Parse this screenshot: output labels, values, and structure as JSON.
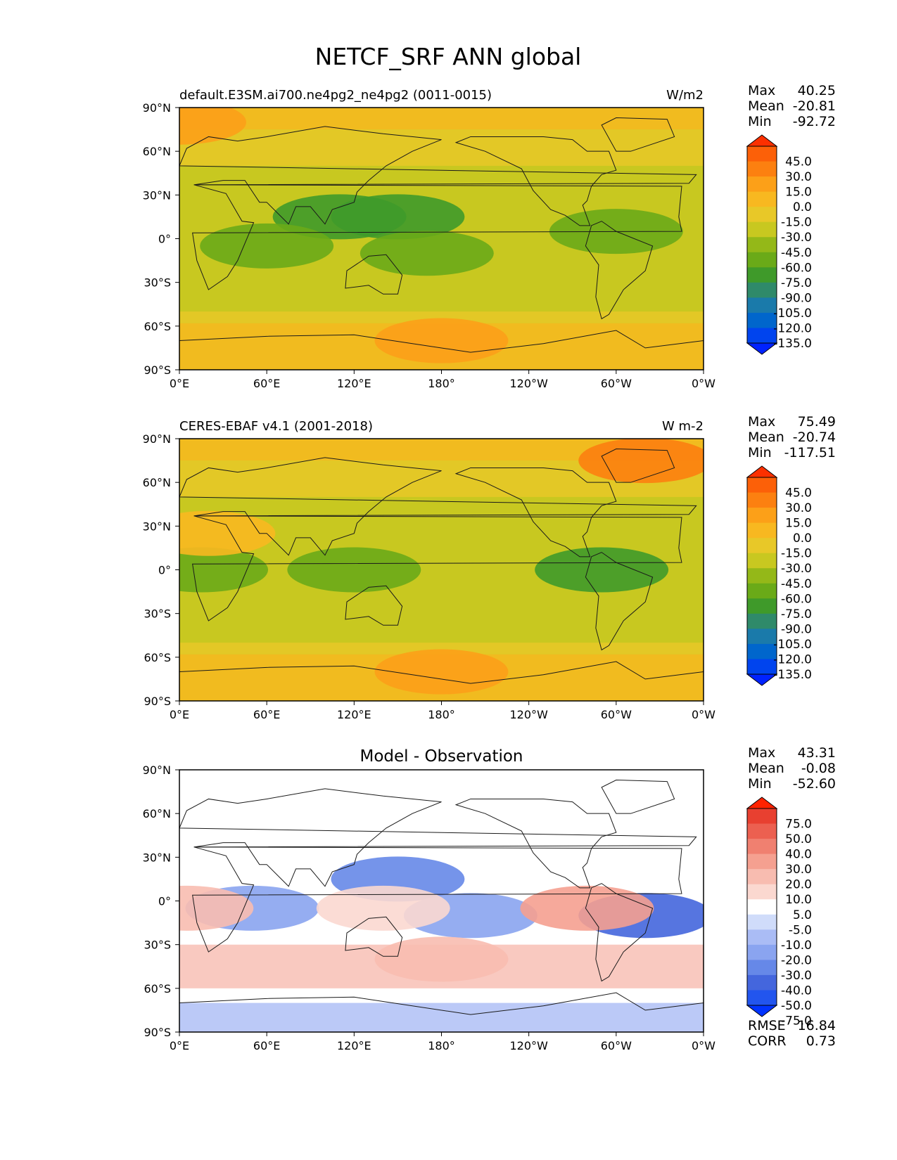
{
  "title": "NETCF_SRF ANN global",
  "lon_ticks": [
    "0°E",
    "60°E",
    "120°E",
    "180°",
    "120°W",
    "60°W",
    "0°W"
  ],
  "lat_ticks": [
    "90°N",
    "60°N",
    "30°N",
    "0°",
    "30°S",
    "60°S",
    "90°S"
  ],
  "stat_labels": {
    "max": "Max",
    "mean": "Mean",
    "min": "Min",
    "rmse": "RMSE",
    "corr": "CORR"
  },
  "colors": {
    "field_scale": [
      "#0022ff",
      "#0044ee",
      "#0066cc",
      "#1a7aaa",
      "#2f8a6a",
      "#3f9a2a",
      "#6aaa18",
      "#94b818",
      "#c8c820",
      "#e8c828",
      "#f8b820",
      "#fca018",
      "#fc8010",
      "#fc6008",
      "#fc3000"
    ],
    "diff_scale": [
      "#0033ff",
      "#2255ee",
      "#4466dd",
      "#6688e8",
      "#8aa4f0",
      "#aabcf5",
      "#d0dcfa",
      "#ffffff",
      "#fbd8d0",
      "#f8bcb0",
      "#f5a090",
      "#f08070",
      "#ec6050",
      "#e84030",
      "#ff2200"
    ]
  },
  "panels": [
    {
      "name": "model",
      "title_left": "default.E3SM.ai700.ne4pg2_ne4pg2 (0011-0015)",
      "title_center": "",
      "units": "W/m2",
      "stats": {
        "max": "40.25",
        "mean": "-20.81",
        "min": "-92.72"
      },
      "colorbar_labels": [
        "45.0",
        "30.0",
        "15.0",
        "0.0",
        "-15.0",
        "-30.0",
        "-45.0",
        "-60.0",
        "-75.0",
        "-90.0",
        "-105.0",
        "-120.0",
        "-135.0"
      ]
    },
    {
      "name": "observation",
      "title_left": "CERES-EBAF v4.1 (2001-2018)",
      "title_center": "",
      "units": "W m-2",
      "stats": {
        "max": "75.49",
        "mean": "-20.74",
        "min": "-117.51"
      },
      "colorbar_labels": [
        "45.0",
        "30.0",
        "15.0",
        "0.0",
        "-15.0",
        "-30.0",
        "-45.0",
        "-60.0",
        "-75.0",
        "-90.0",
        "-105.0",
        "-120.0",
        "-135.0"
      ]
    },
    {
      "name": "difference",
      "title_left": "",
      "title_center": "Model - Observation",
      "units": "",
      "stats": {
        "max": "43.31",
        "mean": "-0.08",
        "min": "-52.60"
      },
      "colorbar_labels": [
        "75.0",
        "50.0",
        "40.0",
        "30.0",
        "20.0",
        "10.0",
        "5.0",
        "-5.0",
        "-10.0",
        "-20.0",
        "-30.0",
        "-40.0",
        "-50.0",
        "-75.0"
      ],
      "rmse": "16.84",
      "corr": "0.73"
    }
  ],
  "chart_data": [
    {
      "type": "heatmap",
      "title": "default.E3SM.ai700.ne4pg2_ne4pg2 (0011-0015)",
      "units": "W/m2",
      "xlim": [
        0,
        360
      ],
      "ylim": [
        -90,
        90
      ],
      "levels": [
        -135,
        -120,
        -105,
        -90,
        -75,
        -60,
        -45,
        -30,
        -15,
        0,
        15,
        30,
        45
      ],
      "max": 40.25,
      "mean": -20.81,
      "min": -92.72,
      "features": [
        {
          "lon": 150,
          "lat": 15,
          "value": -65
        },
        {
          "lon": 110,
          "lat": 15,
          "value": -70
        },
        {
          "lon": 170,
          "lat": -10,
          "value": -50
        },
        {
          "lon": 60,
          "lat": -5,
          "value": -45
        },
        {
          "lon": 300,
          "lat": 5,
          "value": -50
        },
        {
          "lon": 0,
          "lat": 80,
          "value": 20
        },
        {
          "lon": 180,
          "lat": -70,
          "value": 25
        }
      ]
    },
    {
      "type": "heatmap",
      "title": "CERES-EBAF v4.1 (2001-2018)",
      "units": "W m-2",
      "xlim": [
        0,
        360
      ],
      "ylim": [
        -90,
        90
      ],
      "levels": [
        -135,
        -120,
        -105,
        -90,
        -75,
        -60,
        -45,
        -30,
        -15,
        0,
        15,
        30,
        45
      ],
      "max": 75.49,
      "mean": -20.74,
      "min": -117.51,
      "features": [
        {
          "lon": 120,
          "lat": 0,
          "value": -55
        },
        {
          "lon": 290,
          "lat": 0,
          "value": -60
        },
        {
          "lon": 15,
          "lat": 0,
          "value": -45
        },
        {
          "lon": 320,
          "lat": 75,
          "value": 40
        },
        {
          "lon": 20,
          "lat": 25,
          "value": 5
        },
        {
          "lon": 180,
          "lat": -70,
          "value": 20
        }
      ]
    },
    {
      "type": "heatmap",
      "title": "Model - Observation",
      "units": "",
      "xlim": [
        0,
        360
      ],
      "ylim": [
        -90,
        90
      ],
      "levels": [
        -75,
        -50,
        -40,
        -30,
        -20,
        -10,
        -5,
        5,
        10,
        20,
        30,
        40,
        50,
        75
      ],
      "max": 43.31,
      "mean": -0.08,
      "min": -52.6,
      "rmse": 16.84,
      "corr": 0.73,
      "features": [
        {
          "lon": 150,
          "lat": 15,
          "value": -35
        },
        {
          "lon": 320,
          "lat": -10,
          "value": -40
        },
        {
          "lon": 50,
          "lat": -5,
          "value": -25
        },
        {
          "lon": 200,
          "lat": -10,
          "value": -25
        },
        {
          "lon": 280,
          "lat": -5,
          "value": 25
        },
        {
          "lon": 5,
          "lat": -5,
          "value": 20
        },
        {
          "lon": 180,
          "lat": -40,
          "value": 15
        },
        {
          "lon": 140,
          "lat": -5,
          "value": 10
        }
      ]
    }
  ]
}
